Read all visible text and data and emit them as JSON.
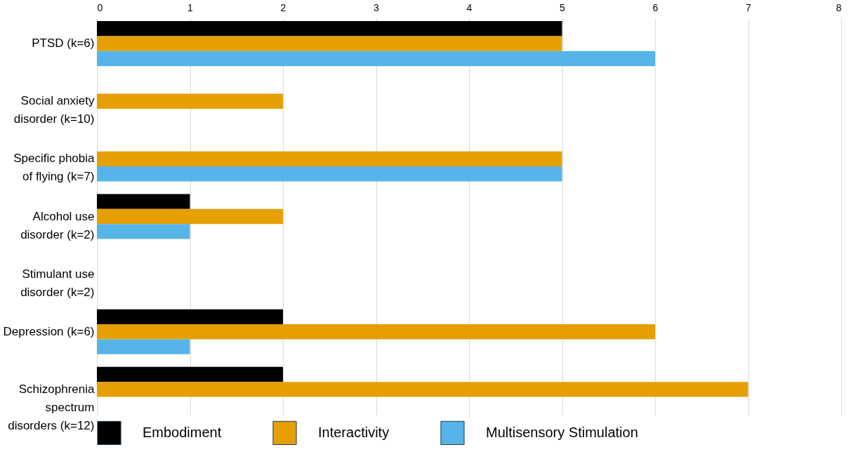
{
  "chart_data": {
    "type": "bar",
    "orientation": "horizontal",
    "categories": [
      "PTSD (k=6)",
      "Social anxiety disorder (k=10)",
      "Specific phobia of flying (k=7)",
      "Alcohol use disorder (k=2)",
      "Stimulant use disorder (k=2)",
      "Depression (k=6)",
      "Schizophrenia spectrum disorders (k=12)"
    ],
    "series": [
      {
        "name": "Embodiment",
        "color": "#000000",
        "values": [
          5,
          null,
          null,
          1,
          null,
          2,
          2
        ]
      },
      {
        "name": "Interactivity",
        "color": "#e69f00",
        "values": [
          5,
          2,
          5,
          2,
          null,
          6,
          7
        ]
      },
      {
        "name": "Multisensory Stimulation",
        "color": "#56b4e9",
        "values": [
          6,
          null,
          5,
          1,
          null,
          1,
          null
        ]
      }
    ],
    "xlim": [
      0,
      8
    ],
    "xticks": [
      0,
      1,
      2,
      3,
      4,
      5,
      6,
      7,
      8
    ],
    "grid": "x",
    "legend": "bottom"
  }
}
